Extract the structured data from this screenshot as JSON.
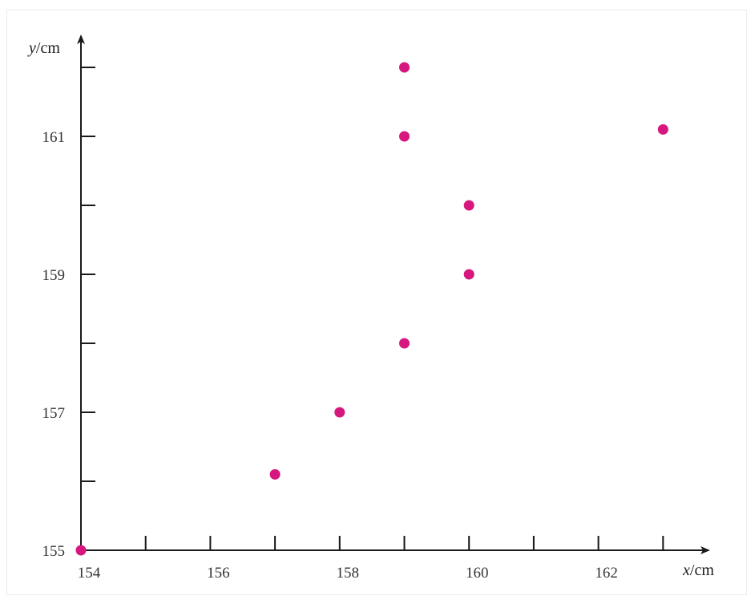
{
  "chart_data": {
    "type": "scatter",
    "title": "",
    "xlabel": {
      "var": "x",
      "unit": "/cm"
    },
    "ylabel": {
      "var": "y",
      "unit": "/cm"
    },
    "xlim": [
      154,
      163.5
    ],
    "ylim": [
      155,
      162
    ],
    "x_major_ticks": [
      154,
      155,
      156,
      157,
      158,
      159,
      160,
      161,
      162,
      163
    ],
    "x_tick_labels": [
      {
        "value": 154,
        "label": "154"
      },
      {
        "value": 156,
        "label": "156"
      },
      {
        "value": 158,
        "label": "158"
      },
      {
        "value": 160,
        "label": "160"
      },
      {
        "value": 162,
        "label": "162"
      }
    ],
    "y_major_ticks": [
      155,
      156,
      157,
      158,
      159,
      160,
      161,
      162
    ],
    "y_tick_labels": [
      {
        "value": 155,
        "label": "155"
      },
      {
        "value": 157,
        "label": "157"
      },
      {
        "value": 159,
        "label": "159"
      },
      {
        "value": 161,
        "label": "161"
      }
    ],
    "points": [
      {
        "x": 154,
        "y": 155
      },
      {
        "x": 157,
        "y": 156.1
      },
      {
        "x": 158,
        "y": 157
      },
      {
        "x": 159,
        "y": 158
      },
      {
        "x": 160,
        "y": 159
      },
      {
        "x": 160,
        "y": 160
      },
      {
        "x": 159,
        "y": 161
      },
      {
        "x": 159,
        "y": 162
      },
      {
        "x": 163,
        "y": 161.1
      }
    ],
    "grid": false,
    "point_color": "#d6177e",
    "axis_color": "#1a1a1a"
  }
}
